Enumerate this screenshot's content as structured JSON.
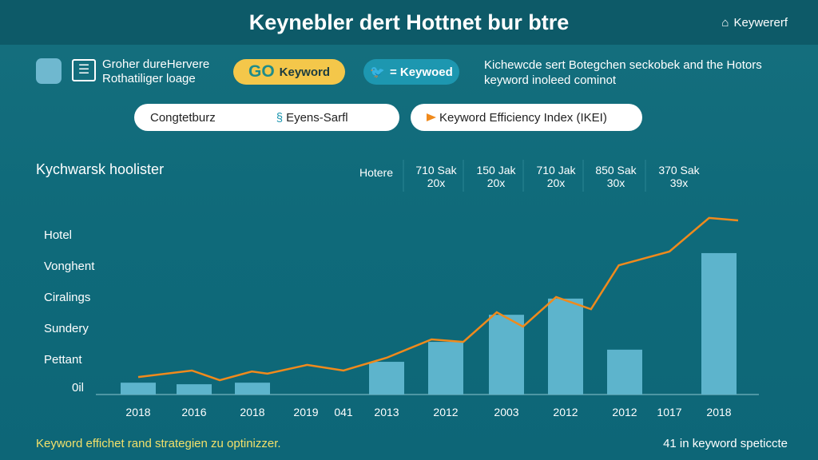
{
  "header": {
    "title": "Keynebler dert Hottnet bur btre",
    "brand": "Keywererf"
  },
  "toolbar": {
    "description_left": [
      "Groher dureHervere",
      "Rothatiliger loage"
    ],
    "go_pill": {
      "logo": "GO",
      "label": "Keyword"
    },
    "twitter_pill": {
      "label": "= Keywoed"
    },
    "description_right": [
      "Kichewcde sert Botegchen seckobek and the Hotors",
      "keyword inoleed cominot"
    ]
  },
  "filters": {
    "left_box": {
      "label": "Congtetburz",
      "second": "Eyens-Sarfl"
    },
    "legend_box": {
      "label": "Keyword Efficiency Index (IKEI)"
    }
  },
  "colors": {
    "bar": "#5db4cc",
    "line": "#f08a1c",
    "accent_yellow": "#f4c74a",
    "footer_text": "#f2e06a"
  },
  "chart_data": {
    "type": "bar+line",
    "title": "Kychwarsk hoolister",
    "column_header": "Hotere",
    "columns": [
      {
        "top": "710 Sak",
        "bottom": "20x"
      },
      {
        "top": "150 Jak",
        "bottom": "20x"
      },
      {
        "top": "710 Jak",
        "bottom": "20x"
      },
      {
        "top": "850 Sak",
        "bottom": "30x"
      },
      {
        "top": "370 Sak",
        "bottom": "39x"
      }
    ],
    "y_tick_labels": [
      "0il",
      "Pettant",
      "Sundery",
      "Ciralings",
      "Vonghent",
      "Hotel"
    ],
    "ylim": [
      0,
      6
    ],
    "x_tick_labels": [
      "2018",
      "2016",
      "2018",
      "2019",
      "041",
      "2013",
      "2012",
      "2003",
      "2012",
      "2012",
      "1017",
      "2018"
    ],
    "bars": [
      {
        "x": 0,
        "value": 0.38
      },
      {
        "x": 1,
        "value": 0.33
      },
      {
        "x": 2,
        "value": 0.38
      },
      {
        "x": 5,
        "value": 1.05
      },
      {
        "x": 6,
        "value": 1.69
      },
      {
        "x": 7,
        "value": 2.56
      },
      {
        "x": 8,
        "value": 3.08
      },
      {
        "x": 9,
        "value": 1.44
      },
      {
        "x": 11,
        "value": 4.54
      }
    ],
    "line": {
      "name": "Keyword Efficiency Index (IKEI)",
      "points": [
        [
          0,
          0.56
        ],
        [
          0.96,
          0.77
        ],
        [
          1.44,
          0.46
        ],
        [
          1.99,
          0.74
        ],
        [
          2.28,
          0.67
        ],
        [
          3.03,
          0.95
        ],
        [
          4,
          0.77
        ],
        [
          5,
          1.18
        ],
        [
          5.76,
          1.77
        ],
        [
          6.29,
          1.69
        ],
        [
          6.84,
          2.64
        ],
        [
          7.28,
          2.18
        ],
        [
          7.84,
          3.13
        ],
        [
          8.43,
          2.74
        ],
        [
          8.9,
          4.15
        ],
        [
          10,
          4.59
        ],
        [
          10.8,
          5.67
        ],
        [
          11.4,
          5.59
        ]
      ]
    },
    "grid": true
  },
  "footer": {
    "left": "Keyword effichet rand strategien zu optinizzer.",
    "right": "41 in keyword speticcte"
  }
}
